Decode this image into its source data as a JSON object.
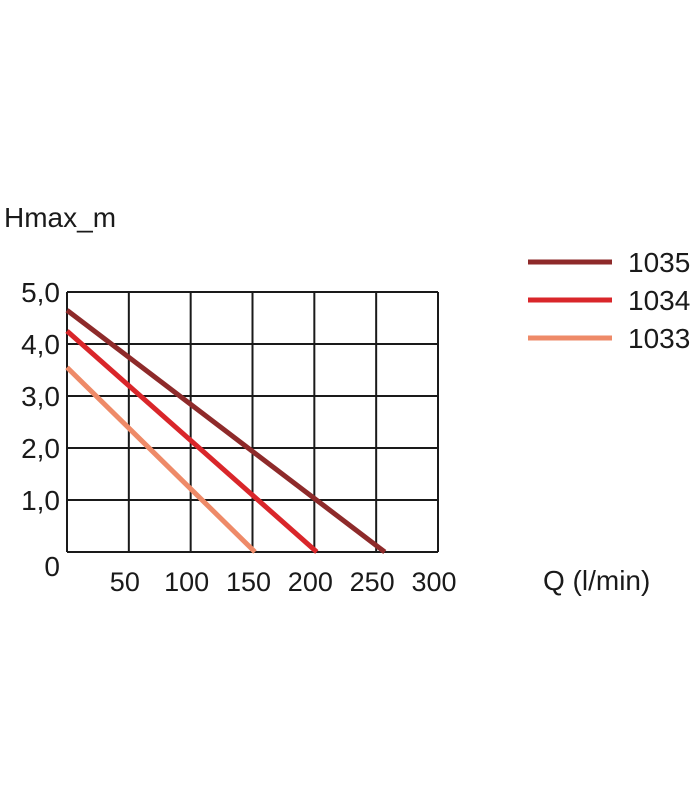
{
  "chart_data": {
    "type": "line",
    "ylabel": "Hmax_m",
    "xlabel": "Q (l/min)",
    "xlim": [
      0,
      300
    ],
    "ylim": [
      0,
      5
    ],
    "grid": true,
    "legend_position": "top-right",
    "x_ticks": [
      {
        "value": 50,
        "label": "50"
      },
      {
        "value": 100,
        "label": "100"
      },
      {
        "value": 150,
        "label": "150"
      },
      {
        "value": 200,
        "label": "200"
      },
      {
        "value": 250,
        "label": "250"
      },
      {
        "value": 300,
        "label": "300"
      }
    ],
    "y_ticks": [
      {
        "value": 0,
        "label": "0"
      },
      {
        "value": 1,
        "label": "1,0"
      },
      {
        "value": 2,
        "label": "2,0"
      },
      {
        "value": 3,
        "label": "3,0"
      },
      {
        "value": 4,
        "label": "4,0"
      },
      {
        "value": 5,
        "label": "5,0"
      }
    ],
    "series": [
      {
        "name": "1035",
        "color": "#8e2a2a",
        "points": [
          [
            0,
            4.65
          ],
          [
            257,
            0
          ]
        ]
      },
      {
        "name": "1034",
        "color": "#d9262a",
        "points": [
          [
            0,
            4.25
          ],
          [
            202,
            0
          ]
        ]
      },
      {
        "name": "1033",
        "color": "#ee8a68",
        "points": [
          [
            0,
            3.55
          ],
          [
            152,
            0
          ]
        ]
      }
    ]
  }
}
